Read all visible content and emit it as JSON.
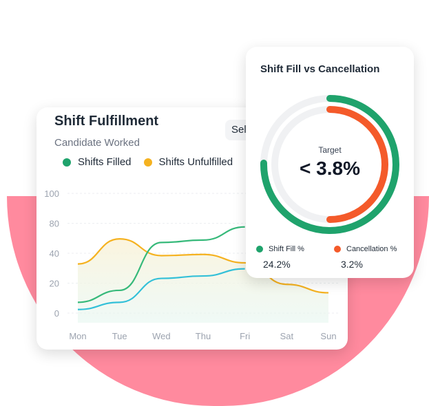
{
  "fulfillment_card": {
    "title": "Shift Fulfillment",
    "subtitle": "Candidate Worked",
    "select_label": "Sel",
    "legend": [
      {
        "label": "Shifts Filled",
        "color": "#1fa36c"
      },
      {
        "label": "Shifts Unfulfilled",
        "color": "#f5b220"
      }
    ]
  },
  "chart_data": {
    "type": "line",
    "categories": [
      "Mon",
      "Tue",
      "Wed",
      "Thu",
      "Fri",
      "Sat",
      "Sun"
    ],
    "ylim": [
      0,
      100
    ],
    "yticks": [
      "100",
      "80",
      "40",
      "20",
      "0"
    ],
    "series": [
      {
        "name": "Shifts Unfulfilled",
        "color": "#f5b220",
        "values": [
          41,
          62,
          48,
          49,
          42,
          24,
          17
        ]
      },
      {
        "name": "Shifts Filled",
        "color": "#36b97a",
        "values": [
          9,
          19,
          59,
          61,
          72,
          null,
          null
        ]
      },
      {
        "name": "",
        "color": "#33c0d8",
        "values": [
          3,
          9,
          29,
          31,
          37,
          null,
          null
        ]
      }
    ]
  },
  "ring_card": {
    "title": "Shift Fill vs Cancellation",
    "target_label": "Target",
    "target_value": "< 3.8%",
    "stats": [
      {
        "label": "Shift Fill %",
        "value": "24.2%",
        "color": "#1fa36c"
      },
      {
        "label": "Cancellation %",
        "value": "3.2%",
        "color": "#f45a2a"
      }
    ]
  }
}
